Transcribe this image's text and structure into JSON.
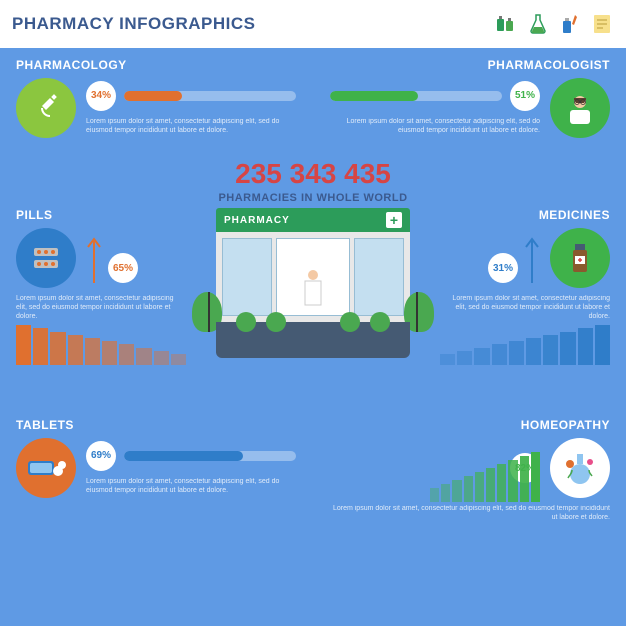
{
  "header": {
    "title": "PHARMACY INFOGRAPHICS",
    "title_color": "#3b5a8f"
  },
  "background_color": "#5f9ae4",
  "lorem": "Lorem ipsum dolor sit amet, consectetur adipiscing elit, sed do eiusmod tempor incididunt ut labore et dolore.",
  "sections": {
    "pharmacology": {
      "title": "PHARMACOLOGY",
      "percent": 34,
      "percent_label": "34%",
      "color": "#e0702f",
      "icon_circle_color": "#8bc63f",
      "bar_style": "progress"
    },
    "pharmacologist": {
      "title": "PHARMACOLOGIST",
      "percent": 51,
      "percent_label": "51%",
      "color": "#3fb24a",
      "icon_circle_color": "#3fb24a",
      "bar_style": "progress"
    },
    "pills": {
      "title": "PILLS",
      "percent": 65,
      "percent_label": "65%",
      "color": "#e0702f",
      "icon_circle_color": "#2f7dc9",
      "bar_style": "decline",
      "bar_count": 10
    },
    "medicines": {
      "title": "MEDICINES",
      "percent": 31,
      "percent_label": "31%",
      "color": "#2f7dc9",
      "icon_circle_color": "#3fb24a",
      "bar_style": "decline",
      "bar_count": 10
    },
    "tablets": {
      "title": "TABLETS",
      "percent": 69,
      "percent_label": "69%",
      "color": "#2f7dc9",
      "icon_circle_color": "#e0702f",
      "bar_style": "progress"
    },
    "homeopathy": {
      "title": "HOMEOPATHY",
      "percent": 82,
      "percent_label": "82%",
      "color": "#3fb24a",
      "icon_circle_color": "#ffffff",
      "bar_style": "decline",
      "bar_count": 10
    }
  },
  "center_stat": {
    "number": "235 343 435",
    "number_color": "#d64545",
    "label": "PHARMACIES IN WHOLE WORLD",
    "label_color": "#3b5a8f"
  },
  "building": {
    "label": "PHARMACY",
    "roof_color": "#2c9c5a",
    "wall_color": "#e8e8e8",
    "ground_color": "#455a73",
    "tree_color": "#4aa850"
  },
  "style": {
    "title_fontsize": 17,
    "section_title_fontsize": 12,
    "pct_fontsize": 10,
    "big_number_fontsize": 28,
    "track_color": "rgba(255,255,255,0.35)",
    "circle_size": 60
  }
}
